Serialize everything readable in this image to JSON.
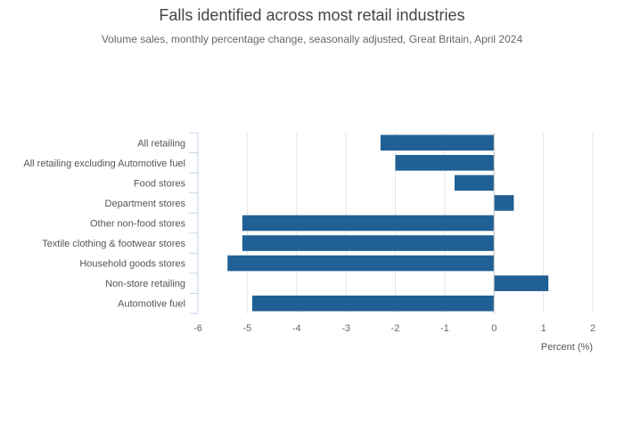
{
  "chart_data": {
    "type": "bar",
    "orientation": "horizontal",
    "title": "Falls identified across most retail industries",
    "subtitle": "Volume sales, monthly percentage change, seasonally adjusted, Great Britain, April 2024",
    "xlabel": "Percent (%)",
    "ylabel": "",
    "xlim": [
      -6,
      2
    ],
    "xticks": [
      -6,
      -5,
      -4,
      -3,
      -2,
      -1,
      0,
      1,
      2
    ],
    "grid": true,
    "bar_color": "#206095",
    "categories": [
      "All retailing",
      "All retailing excluding Automotive fuel",
      "Food stores",
      "Department stores",
      "Other non-food stores",
      "Textile clothing & footwear stores",
      "Household goods stores",
      "Non-store retailing",
      "Automotive fuel"
    ],
    "values": [
      -2.3,
      -2.0,
      -0.8,
      0.4,
      -5.1,
      -5.1,
      -5.4,
      1.1,
      -4.9
    ]
  }
}
